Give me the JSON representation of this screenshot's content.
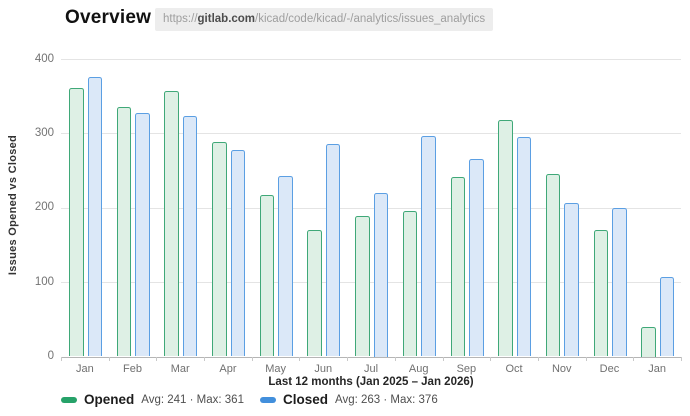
{
  "header": {
    "title": "Overview",
    "url": {
      "scheme": "https://",
      "host": "gitlab.com",
      "path": "/kicad/code/kicad/-/analytics/issues_analytics"
    }
  },
  "chart_data": {
    "type": "bar",
    "title": "",
    "ylabel": "Issues Opened vs Closed",
    "xlabel": "Last 12 months (Jan 2025 – Jan 2026)",
    "categories": [
      "Jan",
      "Feb",
      "Mar",
      "Apr",
      "May",
      "Jun",
      "Jul",
      "Aug",
      "Sep",
      "Oct",
      "Nov",
      "Dec",
      "Jan"
    ],
    "series": [
      {
        "name": "Opened",
        "color": "#26a269",
        "stroke": "#3fa878",
        "fill": "#def0e5",
        "values": [
          361,
          335,
          357,
          288,
          217,
          170,
          189,
          196,
          242,
          318,
          246,
          170,
          40
        ],
        "stats_label": "Avg: 241 · Max: 361",
        "avg": 241,
        "max": 361
      },
      {
        "name": "Closed",
        "color": "#428fdc",
        "stroke": "#5b9fe3",
        "fill": "#dbe8f8",
        "values": [
          376,
          328,
          323,
          277,
          243,
          286,
          220,
          297,
          265,
          295,
          207,
          199,
          107
        ],
        "stats_label": "Avg: 263 · Max: 376",
        "avg": 263,
        "max": 376
      }
    ],
    "ylim": [
      0,
      400
    ],
    "y_ticks": [
      0,
      100,
      200,
      300,
      400
    ],
    "grid": true,
    "legend_position": "bottom-left"
  }
}
